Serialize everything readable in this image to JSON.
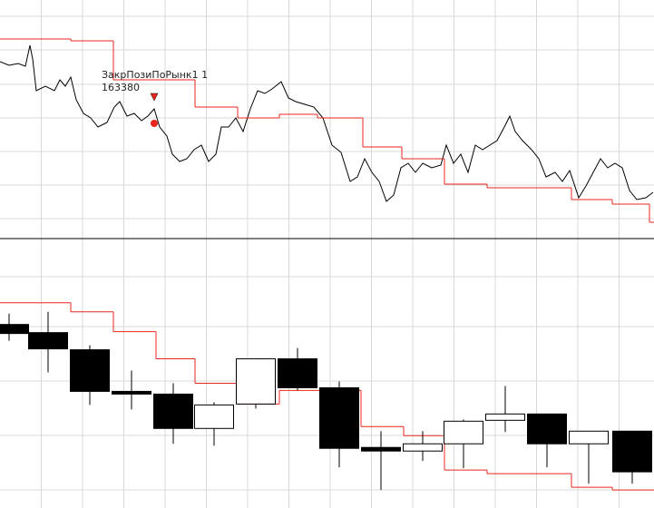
{
  "chart_data": [
    {
      "type": "line",
      "xlim": [
        0,
        721
      ],
      "ylim": [
        162060,
        164680
      ],
      "grid": true,
      "x": [
        0,
        10,
        20,
        28,
        33,
        36,
        40,
        50,
        60,
        66,
        72,
        78,
        84,
        92,
        100,
        108,
        118,
        126,
        132,
        140,
        148,
        156,
        163,
        170,
        176,
        184,
        190,
        198,
        206,
        214,
        222,
        230,
        238,
        244,
        252,
        260,
        268,
        276,
        284,
        292,
        300,
        310,
        318,
        326,
        336,
        346,
        356,
        366,
        376,
        386,
        394,
        402,
        410,
        418,
        426,
        434,
        442,
        450,
        458,
        466,
        476,
        486,
        492,
        500,
        508,
        516,
        524,
        532,
        540,
        548,
        556,
        562,
        568,
        576,
        586,
        594,
        602,
        612,
        620,
        628,
        638,
        646,
        654,
        662,
        670,
        678,
        686,
        694,
        702,
        712,
        720
      ],
      "series": [
        {
          "color": "#000000",
          "values": [
            164000,
            163960,
            163980,
            163950,
            164180,
            164030,
            163680,
            163730,
            163680,
            163800,
            163730,
            163830,
            163580,
            163430,
            163380,
            163280,
            163330,
            163500,
            163560,
            163400,
            163430,
            163350,
            163400,
            163480,
            163280,
            163180,
            162980,
            162900,
            162930,
            163030,
            163080,
            162900,
            162980,
            163280,
            163280,
            163380,
            163230,
            163480,
            163680,
            163650,
            163700,
            163780,
            163600,
            163560,
            163530,
            163500,
            163380,
            163080,
            163000,
            162680,
            162730,
            162930,
            162780,
            162680,
            162460,
            162530,
            162830,
            162880,
            162780,
            162880,
            162830,
            162860,
            163080,
            162880,
            162980,
            162780,
            163080,
            163030,
            163080,
            163130,
            163280,
            163400,
            163230,
            163130,
            163030,
            162930,
            162730,
            162780,
            162680,
            162800,
            162500,
            162630,
            162780,
            162930,
            162830,
            162880,
            162830,
            162580,
            162480,
            162500,
            162560
          ]
        },
        {
          "color": "#e8261f",
          "step": "post",
          "x": [
            0,
            78,
            125,
            215,
            262,
            308,
            350,
            400,
            443,
            490,
            537,
            630,
            675,
            716
          ],
          "values": [
            164250,
            164230,
            163800,
            163500,
            163380,
            163420,
            163380,
            163060,
            162930,
            162650,
            162610,
            162480,
            162430,
            162230
          ]
        }
      ],
      "annotation": {
        "text": "ЗакрПозиПоРынк1 1",
        "price": 163380,
        "x": 170,
        "arrow_value": 163600,
        "dot_value": 163320,
        "color": "#e8261f"
      }
    },
    {
      "type": "candlestick",
      "xlim": [
        0,
        721
      ],
      "ylim": [
        161900,
        164880
      ],
      "grid": true,
      "x": [
        10,
        53,
        99,
        145,
        191,
        236,
        282,
        328,
        374,
        420,
        466,
        511,
        557,
        603,
        649,
        697
      ],
      "open": [
        163930,
        163840,
        163650,
        163190,
        163160,
        162780,
        163050,
        163550,
        163230,
        162570,
        162530,
        162610,
        162870,
        162940,
        162610,
        162750
      ],
      "high": [
        164050,
        164070,
        163700,
        163420,
        163280,
        163070,
        163550,
        163670,
        163300,
        162750,
        162750,
        162880,
        163250,
        162940,
        162750,
        162750
      ],
      "low": [
        163750,
        163400,
        163040,
        162990,
        162610,
        162590,
        163000,
        163200,
        162350,
        162100,
        162420,
        162340,
        162740,
        162350,
        162170,
        162170
      ],
      "close": [
        163830,
        163660,
        163190,
        163160,
        162780,
        163040,
        163550,
        163230,
        162560,
        162530,
        162610,
        162860,
        162940,
        162610,
        162750,
        162300
      ],
      "up_color": "#ffffff",
      "down_color": "#000000",
      "series": [
        {
          "color": "#e8261f",
          "step": "post",
          "x": [
            0,
            78,
            125,
            172,
            215,
            262,
            308,
            350,
            398,
            445,
            490,
            537,
            630,
            675
          ],
          "values": [
            164170,
            164070,
            163850,
            163550,
            163280,
            163050,
            163200,
            163200,
            162800,
            162700,
            162320,
            162280,
            162130,
            162100
          ]
        }
      ]
    }
  ]
}
